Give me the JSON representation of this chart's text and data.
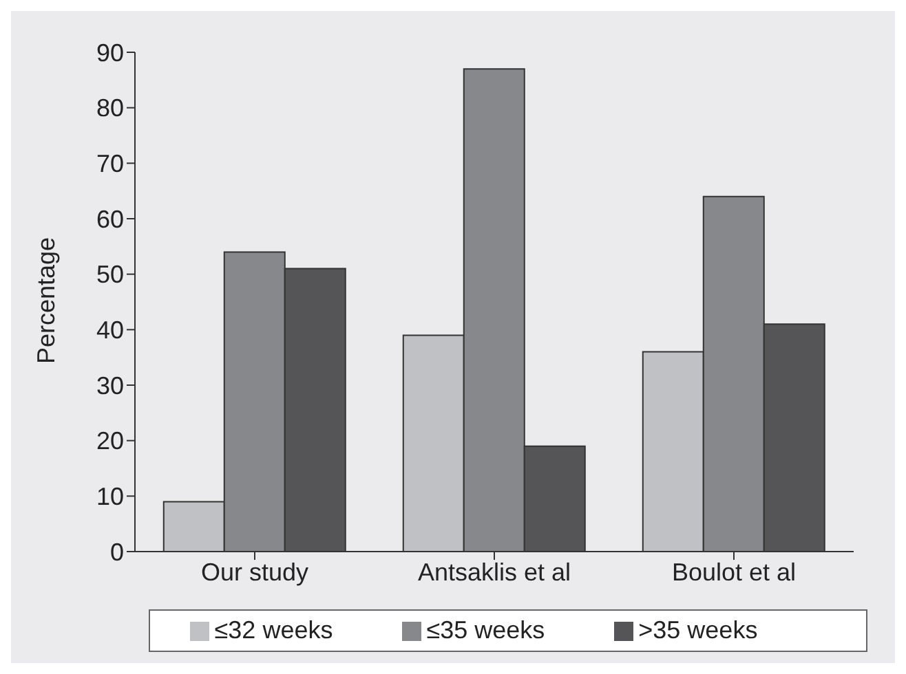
{
  "chart_data": {
    "type": "bar",
    "ylabel": "Percentage",
    "categories": [
      "Our study",
      "Antsaklis et al",
      "Boulot et al"
    ],
    "series": [
      {
        "name": "≤32 weeks",
        "color": "#c0c1c4",
        "values": [
          9,
          39,
          36
        ]
      },
      {
        "name": "≤35 weeks",
        "color": "#87888c",
        "values": [
          54,
          87,
          64
        ]
      },
      {
        "name": ">35 weeks",
        "color": "#555557",
        "values": [
          51,
          19,
          41
        ]
      }
    ],
    "ylim": [
      0,
      90
    ],
    "yticks": [
      0,
      10,
      20,
      30,
      40,
      50,
      60,
      70,
      80,
      90
    ],
    "grid": false,
    "legend": "bottom"
  }
}
